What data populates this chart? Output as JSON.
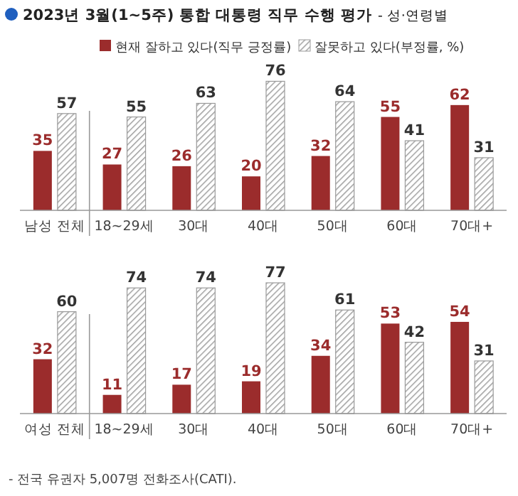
{
  "chart_data": [
    {
      "type": "bar",
      "title": "2023년 3월(1~5주) 통합 대통령 직무 수행 평가",
      "subtitle": "- 성·연령별",
      "categories": [
        "남성 전체",
        "18~29세",
        "30대",
        "40대",
        "50대",
        "60대",
        "70대+"
      ],
      "legend": "top",
      "data_labels": true,
      "series": [
        {
          "name": "현재 잘하고 있다(직무 긍정률)",
          "color": "#9b2c2c",
          "values": [
            35,
            27,
            26,
            20,
            32,
            55,
            62
          ]
        },
        {
          "name": "잘못하고 있다(부정률, %)",
          "color": "#9a9a9a",
          "values": [
            57,
            55,
            63,
            76,
            64,
            41,
            31
          ]
        }
      ]
    },
    {
      "type": "bar",
      "categories": [
        "여성 전체",
        "18~29세",
        "30대",
        "40대",
        "50대",
        "60대",
        "70대+"
      ],
      "data_labels": true,
      "annotations": [
        "- 전국 유권자 5,007명 전화조사(CATI)."
      ],
      "series": [
        {
          "color": "#9b2c2c",
          "values": [
            32,
            11,
            17,
            19,
            34,
            53,
            54
          ]
        },
        {
          "color": "#9a9a9a",
          "values": [
            60,
            74,
            74,
            77,
            61,
            42,
            31
          ]
        }
      ]
    }
  ]
}
